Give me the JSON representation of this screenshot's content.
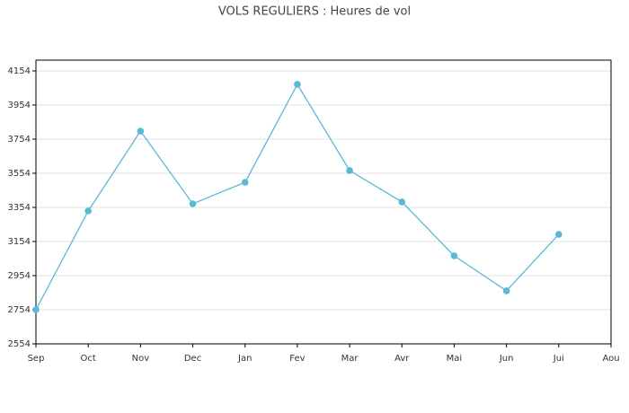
{
  "chart_data": {
    "type": "line",
    "title": "VOLS REGULIERS : Heures de vol",
    "categories": [
      "Sep",
      "Oct",
      "Nov",
      "Dec",
      "Jan",
      "Fev",
      "Mar",
      "Avr",
      "Mai",
      "Jun",
      "Jui",
      "Aou"
    ],
    "series": [
      {
        "name": "Heures de vol",
        "color": "#5ab9d6",
        "values": [
          2754,
          3333,
          3801,
          3375,
          3501,
          4075,
          3570,
          3386,
          3070,
          2865,
          3196,
          null
        ]
      }
    ],
    "ylim": [
      2554,
      4217
    ],
    "yticks": [
      2554,
      2754,
      2954,
      3154,
      3354,
      3554,
      3754,
      3954,
      4154
    ],
    "grid": true
  }
}
